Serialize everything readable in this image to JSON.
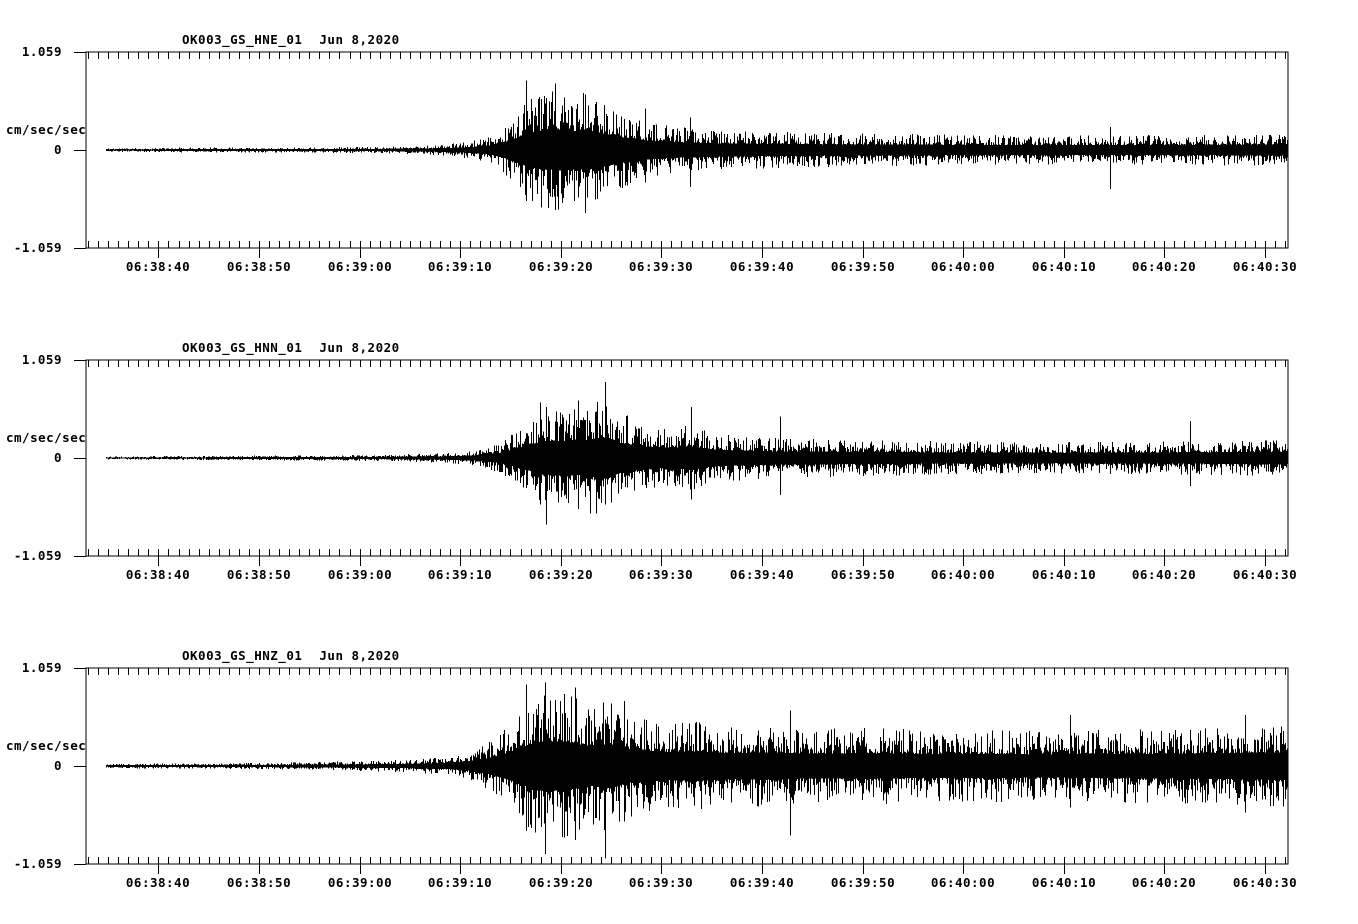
{
  "figure": {
    "background_color": "#ffffff",
    "trace_color": "#000000",
    "duration_s": 119.5,
    "trace_start_s": 2.0,
    "first_tick_offset_s": 7.2,
    "major_tick_interval_s": 10,
    "minor_tick_interval_s": 1,
    "time_reference": "seconds from left edge of each plot box; the 06:38:40 tick is at t=7.2"
  },
  "chart_data": [
    {
      "type": "line",
      "subtype": "seismogram-waveform",
      "title": "OK003_GS_HNE_01",
      "date": "Jun 8,2020",
      "ylabel": "cm/sec/sec",
      "ytick_labels": [
        "1.059",
        "0",
        "-1.059"
      ],
      "ylim": 1.059,
      "xtick_labels": [
        "06:38:40",
        "06:38:50",
        "06:39:00",
        "06:39:10",
        "06:39:20",
        "06:39:30",
        "06:39:40",
        "06:39:50",
        "06:40:00",
        "06:40:10",
        "06:40:20",
        "06:40:30"
      ],
      "seed": 11,
      "envelope": [
        [
          2,
          0.022
        ],
        [
          12,
          0.026
        ],
        [
          22,
          0.03
        ],
        [
          30,
          0.038
        ],
        [
          35,
          0.055
        ],
        [
          38,
          0.09
        ],
        [
          40,
          0.14
        ],
        [
          42,
          0.3
        ],
        [
          43.5,
          0.5
        ],
        [
          45,
          0.62
        ],
        [
          47,
          0.66
        ],
        [
          48.5,
          0.6
        ],
        [
          50,
          0.63
        ],
        [
          52,
          0.5
        ],
        [
          54,
          0.38
        ],
        [
          56,
          0.3
        ],
        [
          58,
          0.26
        ],
        [
          62,
          0.22
        ],
        [
          68,
          0.2
        ],
        [
          76,
          0.18
        ],
        [
          86,
          0.17
        ],
        [
          96,
          0.16
        ],
        [
          106,
          0.16
        ],
        [
          114,
          0.17
        ],
        [
          119.5,
          0.18
        ]
      ],
      "spikes": [
        [
          43.7,
          0.75,
          -0.55
        ],
        [
          45.2,
          0.55,
          -0.62
        ],
        [
          46.6,
          0.72,
          -0.65
        ],
        [
          49.6,
          0.6,
          -0.68
        ],
        [
          55.6,
          0.45,
          -0.35
        ],
        [
          60,
          0.35,
          -0.4
        ],
        [
          101.8,
          0.25,
          -0.42
        ]
      ]
    },
    {
      "type": "line",
      "subtype": "seismogram-waveform",
      "title": "OK003_GS_HNN_01",
      "date": "Jun 8,2020",
      "ylabel": "cm/sec/sec",
      "ytick_labels": [
        "1.059",
        "0",
        "-1.059"
      ],
      "ylim": 1.059,
      "xtick_labels": [
        "06:38:40",
        "06:38:50",
        "06:39:00",
        "06:39:10",
        "06:39:20",
        "06:39:30",
        "06:39:40",
        "06:39:50",
        "06:40:00",
        "06:40:10",
        "06:40:20",
        "06:40:30"
      ],
      "seed": 22,
      "envelope": [
        [
          2,
          0.02
        ],
        [
          12,
          0.024
        ],
        [
          22,
          0.028
        ],
        [
          30,
          0.035
        ],
        [
          36,
          0.055
        ],
        [
          39,
          0.09
        ],
        [
          41,
          0.16
        ],
        [
          43,
          0.32
        ],
        [
          45,
          0.5
        ],
        [
          46.5,
          0.58
        ],
        [
          48,
          0.52
        ],
        [
          50,
          0.6
        ],
        [
          51.8,
          0.68
        ],
        [
          53,
          0.5
        ],
        [
          55,
          0.4
        ],
        [
          57,
          0.33
        ],
        [
          60,
          0.36
        ],
        [
          63,
          0.26
        ],
        [
          68,
          0.22
        ],
        [
          76,
          0.2
        ],
        [
          86,
          0.18
        ],
        [
          96,
          0.17
        ],
        [
          106,
          0.18
        ],
        [
          114,
          0.19
        ],
        [
          119.5,
          0.2
        ]
      ],
      "spikes": [
        [
          45.1,
          0.6,
          -0.5
        ],
        [
          45.7,
          0.55,
          -0.72
        ],
        [
          51.6,
          0.82,
          -0.5
        ],
        [
          48.9,
          0.62,
          -0.55
        ],
        [
          60.1,
          0.55,
          -0.45
        ],
        [
          69,
          0.45,
          -0.4
        ],
        [
          109.8,
          0.4,
          -0.3
        ]
      ]
    },
    {
      "type": "line",
      "subtype": "seismogram-waveform",
      "title": "OK003_GS_HNZ_01",
      "date": "Jun 8,2020",
      "ylabel": "cm/sec/sec",
      "ytick_labels": [
        "1.059",
        "0",
        "-1.059"
      ],
      "ylim": 1.059,
      "xtick_labels": [
        "06:38:40",
        "06:38:50",
        "06:39:00",
        "06:39:10",
        "06:39:20",
        "06:39:30",
        "06:39:40",
        "06:39:50",
        "06:40:00",
        "06:40:10",
        "06:40:20",
        "06:40:30"
      ],
      "seed": 33,
      "envelope": [
        [
          2,
          0.024
        ],
        [
          12,
          0.03
        ],
        [
          22,
          0.04
        ],
        [
          28,
          0.055
        ],
        [
          33,
          0.075
        ],
        [
          36,
          0.1
        ],
        [
          38,
          0.15
        ],
        [
          40,
          0.26
        ],
        [
          42,
          0.45
        ],
        [
          44,
          0.7
        ],
        [
          45.5,
          0.82
        ],
        [
          47,
          0.8
        ],
        [
          48.5,
          0.75
        ],
        [
          50,
          0.65
        ],
        [
          52,
          0.72
        ],
        [
          54,
          0.55
        ],
        [
          56,
          0.5
        ],
        [
          58,
          0.46
        ],
        [
          61,
          0.48
        ],
        [
          64,
          0.42
        ],
        [
          68,
          0.45
        ],
        [
          72,
          0.4
        ],
        [
          78,
          0.42
        ],
        [
          84,
          0.38
        ],
        [
          90,
          0.4
        ],
        [
          96,
          0.37
        ],
        [
          102,
          0.4
        ],
        [
          108,
          0.4
        ],
        [
          114,
          0.43
        ],
        [
          119.5,
          0.44
        ]
      ],
      "spikes": [
        [
          43.7,
          0.88,
          -0.7
        ],
        [
          45.6,
          0.9,
          -0.95
        ],
        [
          48.6,
          0.85,
          -0.8
        ],
        [
          51.6,
          0.5,
          -1.0
        ],
        [
          53.5,
          0.7,
          -0.6
        ],
        [
          70,
          0.6,
          -0.75
        ],
        [
          97.8,
          0.55,
          -0.45
        ],
        [
          115.2,
          0.55,
          -0.5
        ]
      ]
    }
  ]
}
